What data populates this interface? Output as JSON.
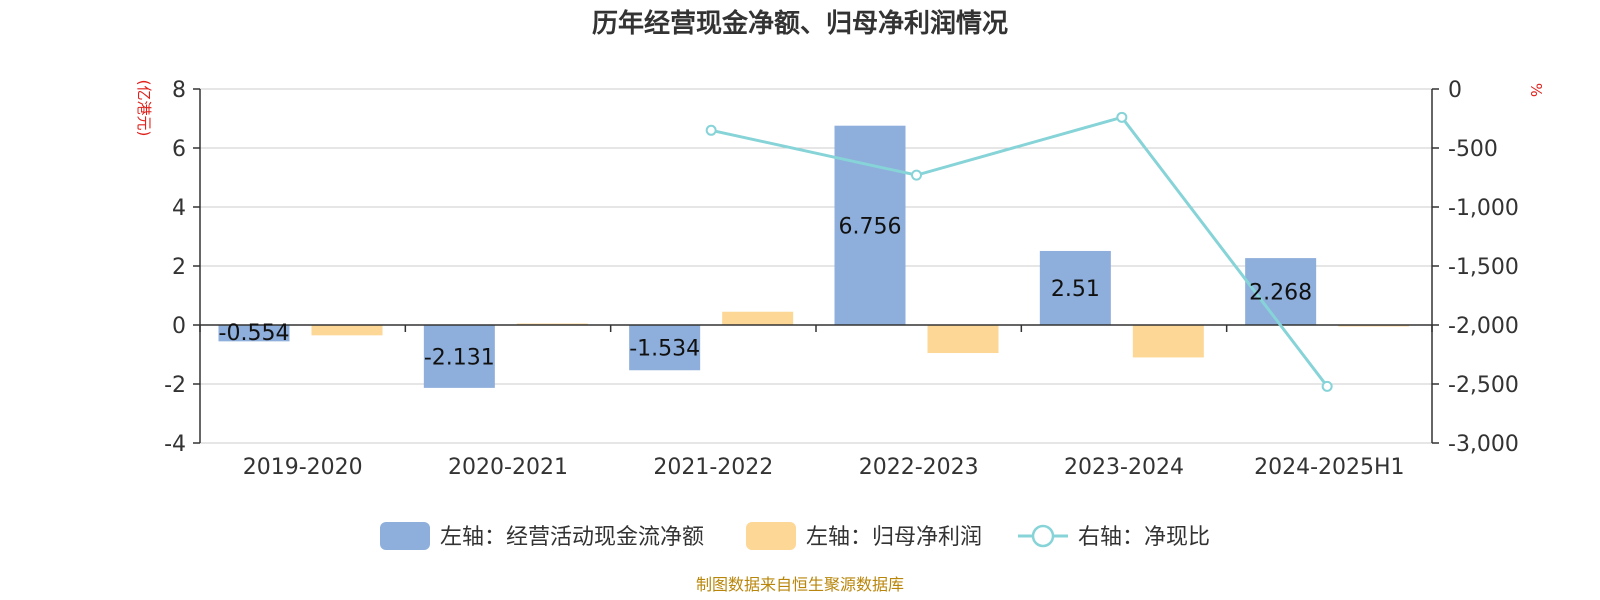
{
  "chart_data": {
    "type": "bar",
    "title": "历年经营现金净额、归母净利润情况",
    "categories": [
      "2019-2020",
      "2020-2021",
      "2021-2022",
      "2022-2023",
      "2023-2024",
      "2024-2025H1"
    ],
    "left_axis": {
      "unit_label": "(亿港元)",
      "min": -4,
      "max": 8,
      "ticks": [
        8,
        6,
        4,
        2,
        0,
        -2,
        -4
      ]
    },
    "right_axis": {
      "unit_label": "%",
      "min": -3000,
      "max": 0,
      "ticks": [
        "0",
        "-500",
        "-1,000",
        "-1,500",
        "-2,000",
        "-2,500",
        "-3,000"
      ]
    },
    "series": [
      {
        "name": "左轴：经营活动现金流净额",
        "kind": "bar",
        "axis": "left",
        "color": "#8eaedb",
        "values": [
          -0.554,
          -2.131,
          -1.534,
          6.756,
          2.51,
          2.268
        ],
        "labels": [
          "-0.554",
          "-2.131",
          "-1.534",
          "6.756",
          "2.51",
          "2.268"
        ]
      },
      {
        "name": "左轴：归母净利润",
        "kind": "bar",
        "axis": "left",
        "color": "#fdd796",
        "values": [
          -0.35,
          0.05,
          0.45,
          -0.95,
          -1.1,
          -0.05
        ]
      },
      {
        "name": "右轴：净现比",
        "kind": "line",
        "axis": "right",
        "color": "#86d3d8",
        "values": [
          null,
          null,
          -350,
          -730,
          -240,
          -2520
        ]
      }
    ],
    "grid": true,
    "legend_position": "bottom",
    "source": "制图数据来自恒生聚源数据库"
  }
}
